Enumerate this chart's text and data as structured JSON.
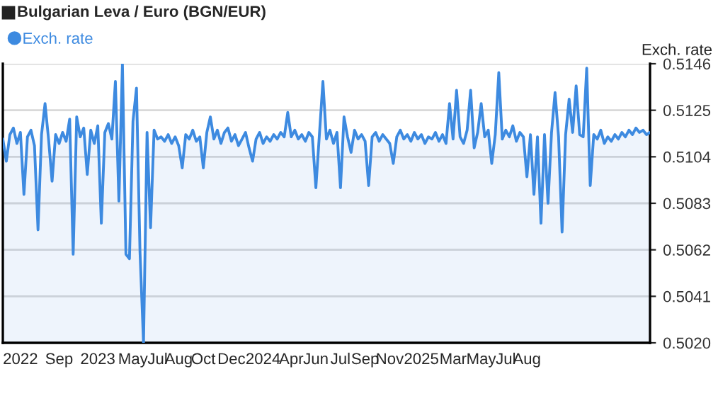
{
  "chart_data": {
    "type": "area",
    "title": "Bulgarian Leva / Euro (BGN/EUR)",
    "ylabel": "Exch. rate",
    "categories": [
      null,
      null,
      null,
      null,
      null,
      "2022",
      null,
      null,
      null,
      null,
      null,
      null,
      null,
      null,
      null,
      null,
      "Sep",
      null,
      null,
      null,
      null,
      null,
      null,
      null,
      null,
      null,
      null,
      "2023",
      null,
      null,
      null,
      null,
      null,
      null,
      null,
      null,
      null,
      "May",
      null,
      null,
      null,
      null,
      null,
      null,
      "Jul",
      null,
      null,
      null,
      null,
      null,
      "Aug",
      null,
      null,
      null,
      null,
      null,
      null,
      "Oct",
      null,
      null,
      null,
      null,
      null,
      null,
      null,
      "Dec",
      null,
      null,
      null,
      null,
      null,
      null,
      null,
      null,
      "2024",
      null,
      null,
      null,
      null,
      null,
      null,
      null,
      "Apr",
      null,
      null,
      null,
      null,
      null,
      null,
      "Jun",
      null,
      null,
      null,
      null,
      null,
      null,
      "Jul",
      null,
      null,
      null,
      null,
      null,
      null,
      "Sep",
      null,
      null,
      null,
      null,
      null,
      null,
      "Nov",
      null,
      null,
      null,
      null,
      null,
      null,
      null,
      null,
      "2025",
      null,
      null,
      null,
      null,
      null,
      null,
      null,
      null,
      "Mar",
      null,
      null,
      null,
      null,
      null,
      null,
      null,
      "May",
      null,
      null,
      null,
      null,
      null,
      null,
      "Jul",
      null,
      null,
      null,
      null,
      null,
      "Aug",
      null,
      null,
      null,
      null,
      null,
      null,
      null,
      null,
      null,
      null,
      null,
      null,
      null,
      null,
      null,
      null,
      null,
      null,
      null,
      null,
      null,
      null,
      null,
      null,
      null,
      null,
      null,
      null,
      null,
      null,
      null,
      null,
      null,
      null,
      null
    ],
    "series": [
      {
        "name": "Exch. rate",
        "color": "#3d8ae0",
        "values": [
          0.5112,
          0.5102,
          0.5114,
          0.5117,
          0.511,
          0.5115,
          0.5087,
          0.5113,
          0.5116,
          0.5109,
          0.5071,
          0.5114,
          0.5128,
          0.5112,
          0.5093,
          0.5114,
          0.511,
          0.5115,
          0.5111,
          0.5121,
          0.506,
          0.5122,
          0.5113,
          0.5117,
          0.5096,
          0.5116,
          0.511,
          0.5118,
          0.5074,
          0.5115,
          0.5119,
          0.5112,
          0.5138,
          0.5084,
          0.5146,
          0.506,
          0.5058,
          0.512,
          0.5135,
          0.5061,
          0.502,
          0.5115,
          0.5072,
          0.5116,
          0.5112,
          0.5113,
          0.5111,
          0.5114,
          0.511,
          0.5113,
          0.5109,
          0.5099,
          0.5114,
          0.5112,
          0.5116,
          0.5111,
          0.5113,
          0.5099,
          0.5115,
          0.5122,
          0.5112,
          0.5116,
          0.511,
          0.5115,
          0.5117,
          0.5111,
          0.5114,
          0.5109,
          0.5112,
          0.5115,
          0.5108,
          0.5102,
          0.5112,
          0.5115,
          0.511,
          0.5113,
          0.5111,
          0.5114,
          0.5112,
          0.5115,
          0.5113,
          0.5124,
          0.5113,
          0.5116,
          0.5112,
          0.5114,
          0.5111,
          0.5115,
          0.5113,
          0.509,
          0.5114,
          0.5138,
          0.5112,
          0.5116,
          0.511,
          0.5115,
          0.509,
          0.5122,
          0.5113,
          0.5106,
          0.5116,
          0.5112,
          0.5114,
          0.5111,
          0.5091,
          0.5113,
          0.5115,
          0.5111,
          0.5114,
          0.5112,
          0.511,
          0.5101,
          0.5113,
          0.5116,
          0.5112,
          0.5114,
          0.5111,
          0.5115,
          0.5112,
          0.5114,
          0.511,
          0.5113,
          0.5112,
          0.5115,
          0.5111,
          0.5114,
          0.511,
          0.5128,
          0.5112,
          0.5134,
          0.5113,
          0.511,
          0.5116,
          0.5134,
          0.5108,
          0.5115,
          0.5128,
          0.5113,
          0.5116,
          0.5101,
          0.5114,
          0.5142,
          0.5112,
          0.5116,
          0.5113,
          0.5118,
          0.5111,
          0.5115,
          0.5113,
          0.5095,
          0.5114,
          0.5087,
          0.5113,
          0.5074,
          0.5114,
          0.5083,
          0.5115,
          0.5133,
          0.5113,
          0.507,
          0.5114,
          0.513,
          0.5115,
          0.5136,
          0.5114,
          0.5113,
          0.5144,
          0.5091,
          0.5114,
          0.5112,
          0.5116,
          0.511,
          0.5113,
          0.5111,
          0.5114,
          0.5112,
          0.5115,
          0.5113,
          0.5116,
          0.5114,
          0.5117,
          0.5115,
          0.5116,
          0.5114,
          0.5115
        ]
      }
    ],
    "ylim": [
      0.502,
      0.5146
    ],
    "yticks": [
      {
        "value": 0.502,
        "label": "0.5020"
      },
      {
        "value": 0.5041,
        "label": "0.5041"
      },
      {
        "value": 0.5062,
        "label": "0.5062"
      },
      {
        "value": 0.5083,
        "label": "0.5083"
      },
      {
        "value": 0.5104,
        "label": "0.5104"
      },
      {
        "value": 0.5125,
        "label": "0.5125"
      },
      {
        "value": 0.5146,
        "label": "0.5146"
      }
    ],
    "grid": "y",
    "legend": "top left"
  }
}
